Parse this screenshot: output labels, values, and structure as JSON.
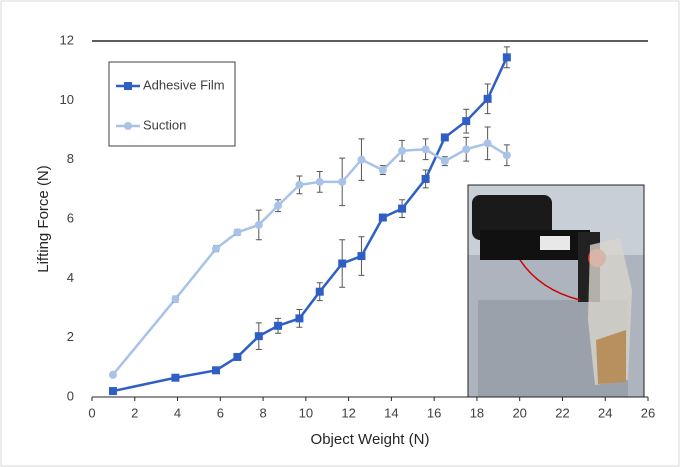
{
  "chart_data": {
    "type": "line",
    "x_label": "Object Weight (N)",
    "y_label": "Lifting Force  (N)",
    "xlim": [
      0,
      26
    ],
    "xticks": [
      0,
      2,
      4,
      6,
      8,
      10,
      12,
      14,
      16,
      18,
      20,
      22,
      24,
      26
    ],
    "ylim": [
      0,
      12
    ],
    "yticks": [
      0,
      2,
      4,
      6,
      8,
      10,
      12
    ],
    "legend": "top-left",
    "series": [
      {
        "name": "Adhesive Film",
        "color": "#2f5fc4",
        "marker": "square",
        "x": [
          0.98,
          3.9,
          5.8,
          6.8,
          7.8,
          8.7,
          9.7,
          10.65,
          11.7,
          12.6,
          13.6,
          14.5,
          15.6,
          16.5,
          17.5,
          18.5,
          19.4
        ],
        "values": [
          0.2,
          0.65,
          0.9,
          1.35,
          2.05,
          2.4,
          2.65,
          3.55,
          4.5,
          4.75,
          6.05,
          6.35,
          7.35,
          8.75,
          9.3,
          10.05,
          11.45
        ],
        "errors": [
          0.05,
          0.1,
          0.1,
          0.1,
          0.45,
          0.25,
          0.3,
          0.3,
          0.8,
          0.65,
          0.1,
          0.3,
          0.3,
          0.1,
          0.4,
          0.5,
          0.35
        ]
      },
      {
        "name": "Suction",
        "color": "#a9c3e8",
        "marker": "circle",
        "x": [
          0.98,
          3.9,
          5.8,
          6.8,
          7.8,
          8.7,
          9.7,
          10.65,
          11.7,
          12.6,
          13.6,
          14.5,
          15.6,
          16.5,
          17.5,
          18.5,
          19.4
        ],
        "values": [
          0.75,
          3.3,
          5.0,
          5.55,
          5.8,
          6.45,
          7.15,
          7.25,
          7.25,
          8.0,
          7.65,
          8.3,
          8.35,
          7.95,
          8.35,
          8.55,
          8.15
        ],
        "errors": [
          0.05,
          0.1,
          0.1,
          0.1,
          0.5,
          0.2,
          0.3,
          0.35,
          0.8,
          0.7,
          0.15,
          0.35,
          0.35,
          0.15,
          0.4,
          0.55,
          0.35
        ]
      }
    ]
  }
}
